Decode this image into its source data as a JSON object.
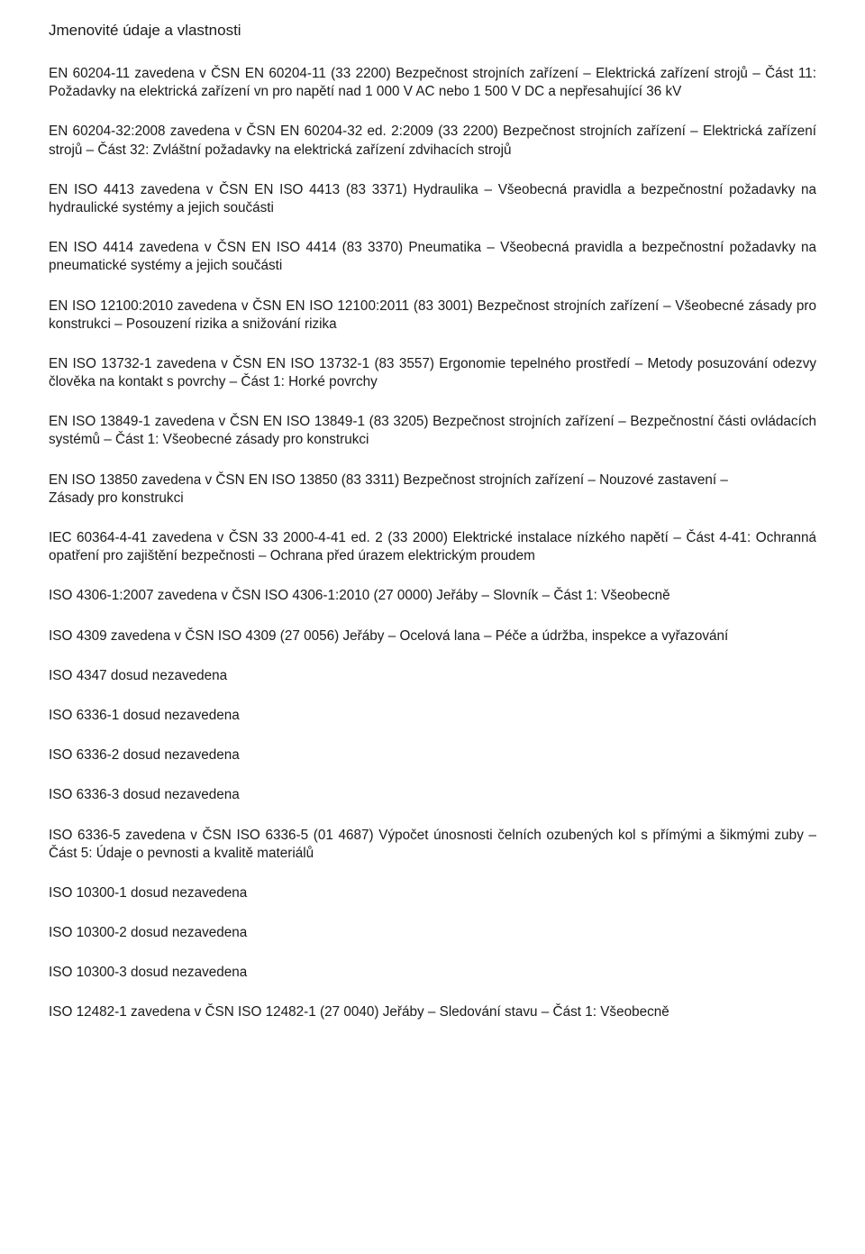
{
  "heading": "Jmenovité údaje a vlastnosti",
  "paragraphs": [
    "EN 60204-11 zavedena v ČSN EN 60204-11 (33 2200) Bezpečnost strojních zařízení – Elektrická zařízení strojů – Část 11: Požadavky na elektrická zařízení vn pro napětí nad 1 000 V AC nebo 1 500 V DC a nepřesahující 36 kV",
    "EN 60204-32:2008 zavedena v ČSN EN 60204-32 ed. 2:2009 (33 2200) Bezpečnost strojních zařízení – Elektrická zařízení strojů – Část 32: Zvláštní požadavky na elektrická zařízení zdvihacích strojů",
    "EN ISO 4413 zavedena v ČSN EN ISO 4413 (83 3371) Hydraulika – Všeobecná pravidla a bezpečnostní požadavky na hydraulické systémy a jejich součásti",
    "EN ISO 4414 zavedena v ČSN EN ISO 4414 (83 3370) Pneumatika – Všeobecná pravidla a bezpečnostní požadavky na pneumatické systémy a jejich součásti",
    "EN ISO 12100:2010 zavedena v ČSN EN ISO 12100:2011 (83 3001) Bezpečnost strojních zařízení – Všeobecné zásady pro konstrukci – Posouzení rizika a snižování rizika",
    "EN ISO 13732-1 zavedena v ČSN EN ISO 13732-1 (83 3557) Ergonomie tepelného prostředí – Metody posuzování odezvy člověka na kontakt s povrchy – Část 1: Horké povrchy",
    "EN ISO 13849-1 zavedena v ČSN EN ISO 13849-1 (83 3205) Bezpečnost strojních zařízení – Bezpečnostní části ovládacích systémů – Část 1: Všeobecné zásady pro konstrukci",
    "EN ISO 13850 zavedena v ČSN EN ISO 13850 (83 3311) Bezpečnost strojních zařízení – Nouzové zastavení –\nZásady pro konstrukci",
    "IEC 60364-4-41 zavedena v ČSN 33 2000-4-41 ed. 2 (33 2000) Elektrické instalace nízkého napětí – Část 4-41: Ochranná opatření pro zajištění bezpečnosti – Ochrana před úrazem elektrickým proudem",
    "ISO 4306-1:2007 zavedena v ČSN ISO 4306-1:2010 (27 0000) Jeřáby – Slovník – Část 1: Všeobecně",
    "ISO 4309 zavedena v ČSN ISO 4309 (27 0056) Jeřáby – Ocelová lana – Péče a údržba, inspekce a vyřazování",
    "ISO 4347 dosud nezavedena",
    "ISO 6336-1 dosud nezavedena",
    "ISO 6336-2 dosud nezavedena",
    "ISO 6336-3 dosud nezavedena",
    "ISO 6336-5 zavedena v ČSN ISO 6336-5 (01 4687) Výpočet únosnosti čelních ozubených kol s přímými a šikmými zuby – Část 5: Údaje o pevnosti a kvalitě materiálů",
    "ISO 10300-1 dosud nezavedena",
    "ISO 10300-2 dosud nezavedena",
    "ISO 10300-3 dosud nezavedena",
    "ISO 12482-1 zavedena v ČSN ISO 12482-1 (27 0040) Jeřáby – Sledování stavu – Část 1: Všeobecně"
  ]
}
